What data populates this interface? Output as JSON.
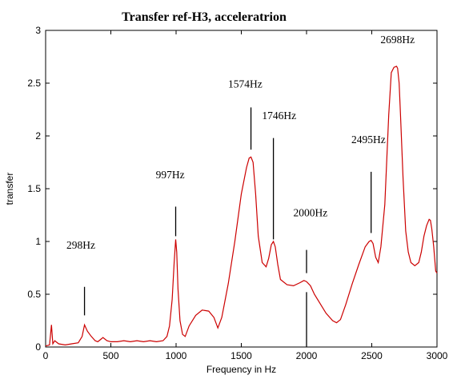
{
  "chart_data": {
    "type": "line",
    "title": "Transfer ref-H3, acceleratrion",
    "xlabel": "Frequency in Hz",
    "ylabel": "transfer",
    "xlim": [
      0,
      3000
    ],
    "ylim": [
      0,
      3
    ],
    "x_ticks": [
      "0",
      "500",
      "1000",
      "1500",
      "2000",
      "2500",
      "3000"
    ],
    "y_ticks": [
      "0",
      "0.5",
      "1",
      "1.5",
      "2",
      "2.5",
      "3"
    ],
    "grid": false,
    "line_color": "#cc0000",
    "series": [
      {
        "x": [
          0,
          30,
          45,
          55,
          70,
          100,
          150,
          200,
          250,
          280,
          298,
          320,
          350,
          380,
          400,
          440,
          470,
          500,
          550,
          600,
          650,
          700,
          750,
          800,
          850,
          900,
          930,
          950,
          970,
          985,
          997,
          1005,
          1015,
          1030,
          1050,
          1070,
          1100,
          1150,
          1200,
          1250,
          1290,
          1320,
          1350,
          1400,
          1450,
          1500,
          1540,
          1560,
          1574,
          1590,
          1610,
          1630,
          1660,
          1690,
          1710,
          1730,
          1746,
          1760,
          1780,
          1800,
          1850,
          1900,
          1950,
          1980,
          2000,
          2030,
          2060,
          2100,
          2150,
          2200,
          2230,
          2260,
          2300,
          2350,
          2400,
          2450,
          2480,
          2495,
          2510,
          2530,
          2550,
          2570,
          2600,
          2630,
          2650,
          2670,
          2690,
          2698,
          2710,
          2720,
          2740,
          2760,
          2780,
          2800,
          2830,
          2860,
          2880,
          2900,
          2920,
          2940,
          2950,
          2960,
          2975,
          2990,
          3000
        ],
        "values": [
          0.01,
          0.02,
          0.21,
          0.03,
          0.06,
          0.03,
          0.02,
          0.03,
          0.04,
          0.1,
          0.21,
          0.15,
          0.1,
          0.06,
          0.05,
          0.09,
          0.06,
          0.05,
          0.05,
          0.06,
          0.05,
          0.06,
          0.05,
          0.06,
          0.05,
          0.06,
          0.1,
          0.2,
          0.45,
          0.8,
          1.02,
          0.9,
          0.55,
          0.25,
          0.12,
          0.1,
          0.2,
          0.3,
          0.35,
          0.34,
          0.28,
          0.18,
          0.28,
          0.6,
          1.0,
          1.45,
          1.7,
          1.79,
          1.8,
          1.75,
          1.45,
          1.05,
          0.8,
          0.76,
          0.84,
          0.97,
          1.0,
          0.95,
          0.78,
          0.64,
          0.59,
          0.58,
          0.61,
          0.63,
          0.62,
          0.58,
          0.5,
          0.42,
          0.32,
          0.25,
          0.23,
          0.26,
          0.4,
          0.6,
          0.78,
          0.95,
          1.0,
          1.01,
          0.98,
          0.85,
          0.8,
          0.95,
          1.35,
          2.2,
          2.6,
          2.65,
          2.66,
          2.64,
          2.5,
          2.2,
          1.6,
          1.1,
          0.9,
          0.8,
          0.77,
          0.8,
          0.9,
          1.05,
          1.15,
          1.21,
          1.2,
          1.12,
          0.95,
          0.72,
          0.7
        ]
      }
    ],
    "annotations": [
      {
        "label": "298Hz",
        "text_x": 270,
        "text_y": 0.93,
        "line_x": 298,
        "line_y0": 0.3,
        "line_y1": 0.57
      },
      {
        "label": "997Hz",
        "text_x": 955,
        "text_y": 1.6,
        "line_x": 997,
        "line_y0": 1.05,
        "line_y1": 1.33
      },
      {
        "label": "1574Hz",
        "text_x": 1530,
        "text_y": 2.46,
        "line_x": 1574,
        "line_y0": 1.87,
        "line_y1": 2.27
      },
      {
        "label": "1746Hz",
        "text_x": 1790,
        "text_y": 2.16,
        "line_x": 1746,
        "line_y0": 1.02,
        "line_y1": 1.98
      },
      {
        "label": "2000Hz",
        "text_x": 2030,
        "text_y": 1.24,
        "line_x": 2000,
        "line_y0": 0.7,
        "line_y1": 0.92
      },
      {
        "label": "2000Hz-below",
        "label_hidden": true,
        "line_x": 2000,
        "line_y0": 0.0,
        "line_y1": 0.52
      },
      {
        "label": "2495Hz",
        "text_x": 2475,
        "text_y": 1.93,
        "line_x": 2495,
        "line_y0": 1.08,
        "line_y1": 1.66
      },
      {
        "label": "2698Hz",
        "text_x": 2698,
        "text_y": 2.88
      }
    ]
  }
}
